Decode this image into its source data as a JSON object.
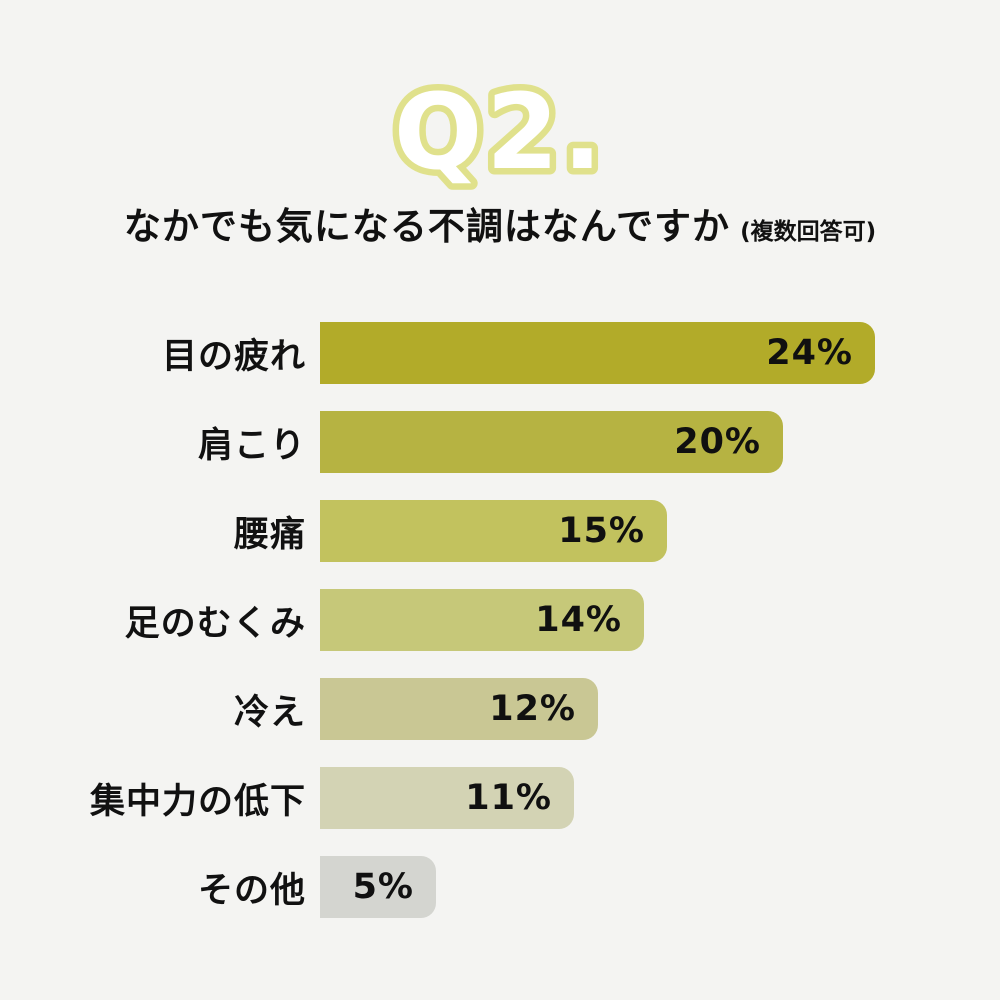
{
  "page": {
    "background_color": "#f4f4f2",
    "text_color": "#111111"
  },
  "title": {
    "text": "Q2.",
    "fill_color": "#ffffff",
    "outline_color": "#e0e18c"
  },
  "subtitle": {
    "main": "なかでも気になる不調はなんですか",
    "note": "(複数回答可)"
  },
  "chart_data": {
    "type": "bar",
    "orientation": "horizontal",
    "title": "Q2.",
    "subtitle": "なかでも気になる不調はなんですか (複数回答可)",
    "categories": [
      "目の疲れ",
      "肩こり",
      "腰痛",
      "足のむくみ",
      "冷え",
      "集中力の低下",
      "その他"
    ],
    "values": [
      24,
      20,
      15,
      14,
      12,
      11,
      5
    ],
    "value_labels": [
      "24%",
      "20%",
      "15%",
      "14%",
      "12%",
      "11%",
      "5%"
    ],
    "bar_colors": [
      "#b2ab29",
      "#b6b342",
      "#c2c25e",
      "#c6c879",
      "#c9c794",
      "#d3d3b4",
      "#d4d5d0"
    ],
    "value_unit": "%",
    "xlabel": "",
    "ylabel": "",
    "xlim": [
      0,
      24
    ],
    "grid": false,
    "legend": "none",
    "value_label_position": "inside-end"
  }
}
